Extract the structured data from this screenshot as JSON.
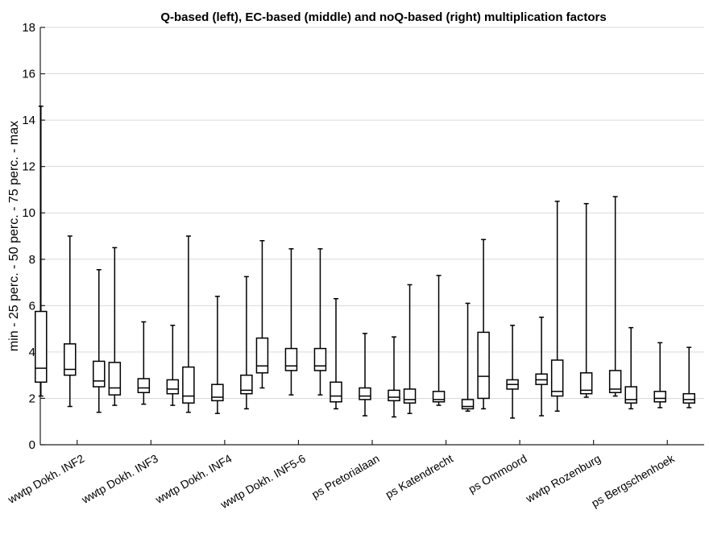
{
  "chart_data": {
    "type": "boxplot",
    "title": "Q-based (left), EC-based (middle) and noQ-based (right) multiplication factors",
    "ylabel": "min - 25 perc. - 50 perc. - 75 perc. - max",
    "ylim": [
      0,
      18
    ],
    "yticks": [
      0,
      2,
      4,
      6,
      8,
      10,
      12,
      14,
      16,
      18
    ],
    "grid": "horizontal",
    "categories": [
      "wwtp Dokh. INF2",
      "wwtp Dokh. INF3",
      "wwtp Dokh. INF4",
      "wwtp Dokh. INF5-6",
      "ps Pretorialaan",
      "ps Katendrecht",
      "ps Ommoord",
      "wwtp Rozenburg",
      "ps Bergschenhoek"
    ],
    "series": [
      {
        "name": "Q-based",
        "boxes": [
          {
            "min": 2.1,
            "q1": 2.7,
            "median": 3.3,
            "q3": 5.75,
            "max": 14.6
          },
          {
            "min": 1.7,
            "q1": 2.15,
            "median": 2.45,
            "q3": 3.55,
            "max": 8.5
          },
          {
            "min": 1.4,
            "q1": 1.8,
            "median": 2.1,
            "q3": 3.35,
            "max": 9.0
          },
          {
            "min": 2.45,
            "q1": 3.1,
            "median": 3.4,
            "q3": 4.6,
            "max": 8.8
          },
          {
            "min": 1.55,
            "q1": 1.85,
            "median": 2.1,
            "q3": 2.7,
            "max": 6.3
          },
          {
            "min": 1.35,
            "q1": 1.8,
            "median": 1.95,
            "q3": 2.4,
            "max": 6.9
          },
          {
            "min": 1.55,
            "q1": 2.0,
            "median": 2.95,
            "q3": 4.85,
            "max": 8.85
          },
          {
            "min": 1.45,
            "q1": 2.1,
            "median": 2.3,
            "q3": 3.65,
            "max": 10.5
          },
          {
            "min": 1.55,
            "q1": 1.8,
            "median": 1.95,
            "q3": 2.5,
            "max": 5.05
          }
        ]
      },
      {
        "name": "EC-based",
        "boxes": [
          {
            "min": 1.65,
            "q1": 3.0,
            "median": 3.25,
            "q3": 4.35,
            "max": 9.0
          },
          {
            "min": 1.75,
            "q1": 2.25,
            "median": 2.45,
            "q3": 2.85,
            "max": 5.3
          },
          {
            "min": 1.35,
            "q1": 1.9,
            "median": 2.05,
            "q3": 2.6,
            "max": 6.4
          },
          {
            "min": 2.15,
            "q1": 3.2,
            "median": 3.4,
            "q3": 4.15,
            "max": 8.45
          },
          {
            "min": 1.25,
            "q1": 1.95,
            "median": 2.1,
            "q3": 2.45,
            "max": 4.8
          },
          {
            "min": 1.7,
            "q1": 1.85,
            "median": 1.95,
            "q3": 2.3,
            "max": 7.3
          },
          {
            "min": 1.15,
            "q1": 2.4,
            "median": 2.6,
            "q3": 2.8,
            "max": 5.15
          },
          {
            "min": 2.05,
            "q1": 2.2,
            "median": 2.35,
            "q3": 3.1,
            "max": 10.4
          },
          {
            "min": 1.6,
            "q1": 1.85,
            "median": 2.0,
            "q3": 2.3,
            "max": 4.4
          }
        ]
      },
      {
        "name": "noQ-based",
        "boxes": [
          {
            "min": 1.4,
            "q1": 2.5,
            "median": 2.75,
            "q3": 3.6,
            "max": 7.55
          },
          {
            "min": 1.7,
            "q1": 2.2,
            "median": 2.4,
            "q3": 2.8,
            "max": 5.15
          },
          {
            "min": 1.55,
            "q1": 2.2,
            "median": 2.35,
            "q3": 3.0,
            "max": 7.25
          },
          {
            "min": 2.15,
            "q1": 3.2,
            "median": 3.4,
            "q3": 4.15,
            "max": 8.45
          },
          {
            "min": 1.2,
            "q1": 1.9,
            "median": 2.05,
            "q3": 2.35,
            "max": 4.65
          },
          {
            "min": 1.45,
            "q1": 1.55,
            "median": 1.65,
            "q3": 1.95,
            "max": 6.1
          },
          {
            "min": 1.25,
            "q1": 2.6,
            "median": 2.8,
            "q3": 3.05,
            "max": 5.5
          },
          {
            "min": 2.1,
            "q1": 2.25,
            "median": 2.4,
            "q3": 3.2,
            "max": 10.7
          },
          {
            "min": 1.6,
            "q1": 1.8,
            "median": 1.95,
            "q3": 2.2,
            "max": 4.2
          }
        ]
      }
    ]
  }
}
